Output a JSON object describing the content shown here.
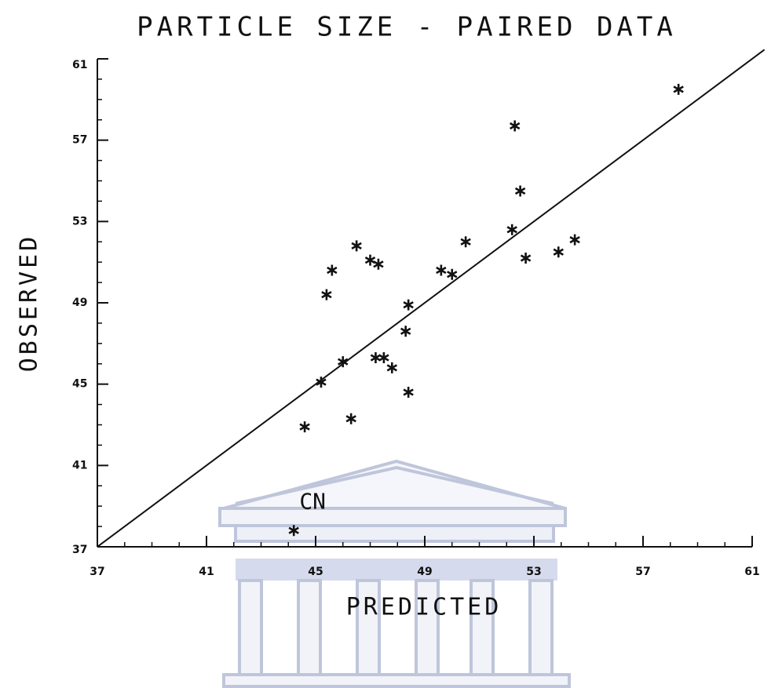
{
  "chart_data": {
    "type": "scatter",
    "title": "PARTICLE SIZE - PAIRED DATA",
    "x_label": "PREDICTED",
    "y_label": "OBSERVED",
    "xlim": [
      37,
      61
    ],
    "ylim": [
      37,
      61
    ],
    "xticks": [
      37,
      41,
      45,
      49,
      53,
      57,
      61
    ],
    "yticks": [
      37,
      41,
      45,
      49,
      53,
      57,
      61
    ],
    "minor_tick_interval": 1,
    "diagonal": true,
    "color": "#111111",
    "series": [
      {
        "x": [
          58.3,
          52.3,
          52.5,
          52.2,
          50.5,
          54.5,
          53.9,
          52.7,
          46.5,
          47.0,
          47.3,
          45.6,
          49.6,
          50.0,
          45.4,
          48.4,
          48.3,
          47.2,
          47.5,
          46.0,
          47.8,
          45.2,
          48.4,
          46.3,
          44.6,
          44.2
        ],
        "values": [
          59.5,
          57.7,
          54.5,
          52.6,
          52.0,
          52.1,
          51.5,
          51.2,
          51.8,
          51.1,
          50.9,
          50.6,
          50.6,
          50.4,
          49.4,
          48.9,
          47.6,
          46.3,
          46.3,
          46.1,
          45.8,
          45.1,
          44.6,
          43.3,
          42.9,
          37.8
        ]
      }
    ],
    "annotations": [
      {
        "text": "CN",
        "x": 44.2,
        "y": 37.8
      }
    ]
  }
}
